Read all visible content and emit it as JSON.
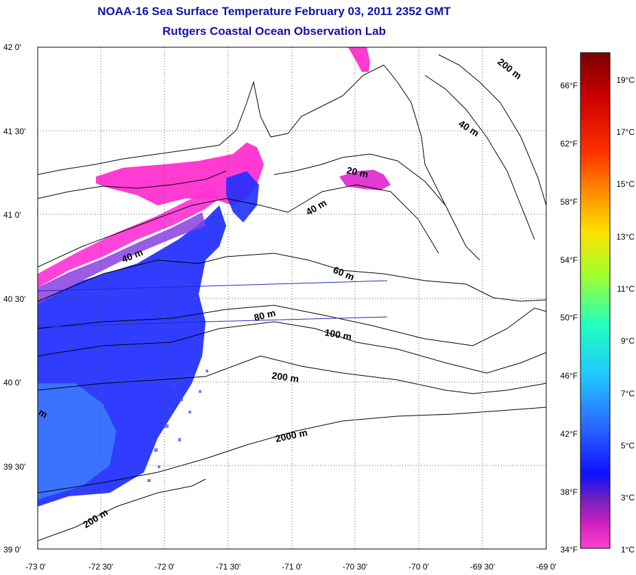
{
  "title": "NOAA-16 Sea Surface Temperature February 03, 2011 2352 GMT",
  "subtitle": "Rutgers Coastal Ocean Observation Lab",
  "lat_ticks": [
    "42 0'",
    "41 30'",
    "41 0'",
    "40 30'",
    "40 0'",
    "39 30'",
    "39 0'"
  ],
  "lon_ticks": [
    "-73 0'",
    "-72 30'",
    "-72 0'",
    "-71 30'",
    "-71 0'",
    "-70 30'",
    "-70 0'",
    "-69 30'",
    "-69 0'"
  ],
  "contour_labels": [
    "200 m",
    "40 m",
    "20 m",
    "40 m",
    "40 m",
    "60 m",
    "80 m",
    "100 m",
    "200 m",
    "2000 m",
    "200 m",
    "m"
  ],
  "colorbar": {
    "fahrenheit": [
      "66°F",
      "62°F",
      "58°F",
      "54°F",
      "50°F",
      "46°F",
      "42°F",
      "38°F",
      "34°F"
    ],
    "celsius": [
      "19°C",
      "17°C",
      "15°C",
      "13°C",
      "11°C",
      "9°C",
      "7°C",
      "5°C",
      "3°C",
      "1°C"
    ]
  },
  "colors": {
    "title": "#1010b0",
    "cold_magenta": "#ff30d8",
    "cold_blue": "#1a1aff",
    "mid_blue": "#3a7cff"
  }
}
